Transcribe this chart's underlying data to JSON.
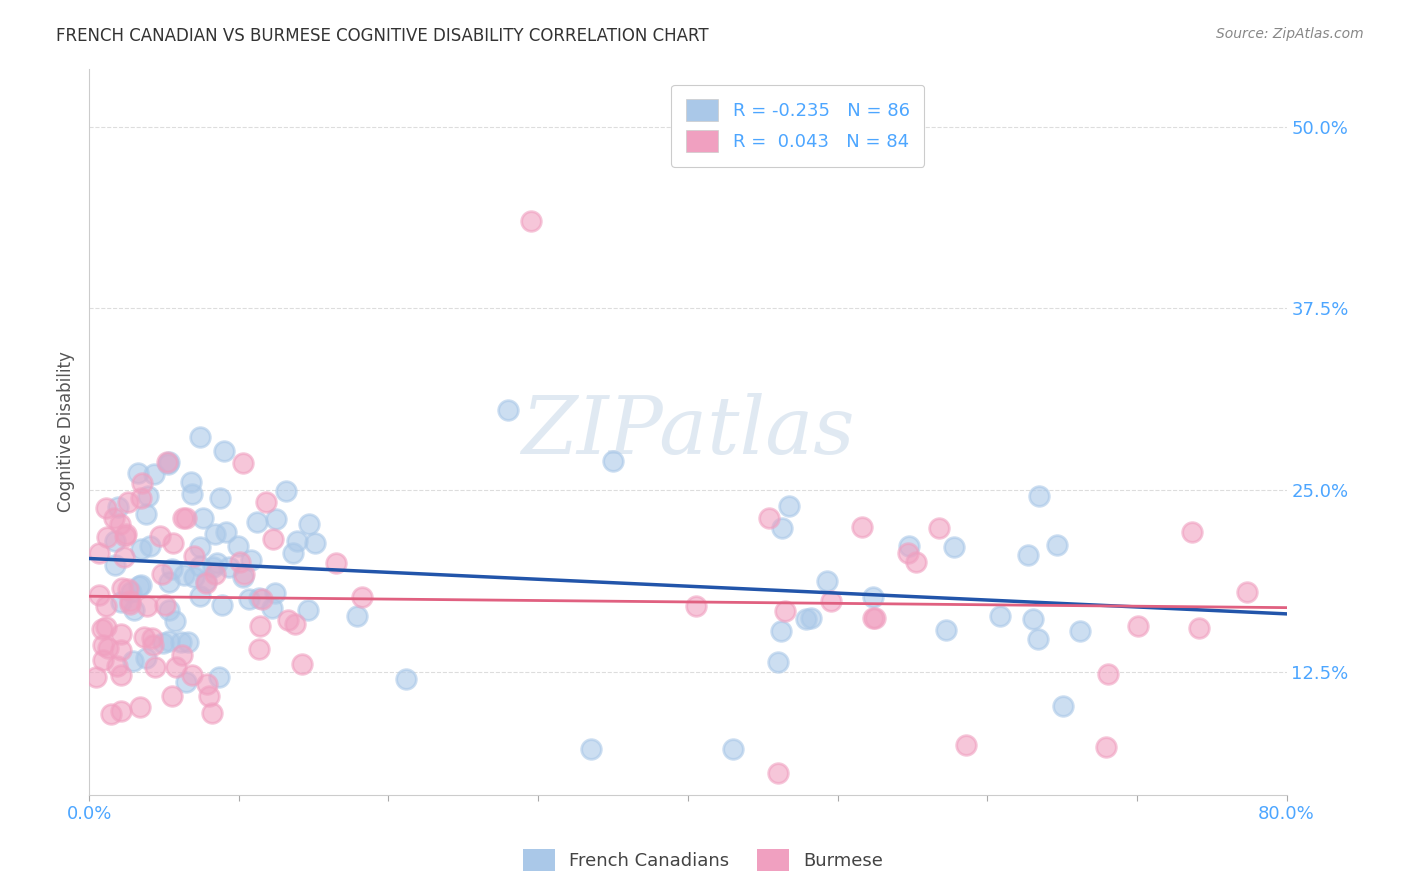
{
  "title": "FRENCH CANADIAN VS BURMESE COGNITIVE DISABILITY CORRELATION CHART",
  "source": "Source: ZipAtlas.com",
  "ylabel": "Cognitive Disability",
  "ytick_labels": [
    "12.5%",
    "25.0%",
    "37.5%",
    "50.0%"
  ],
  "ytick_values": [
    0.125,
    0.25,
    0.375,
    0.5
  ],
  "xlim": [
    0.0,
    0.8
  ],
  "ylim": [
    0.04,
    0.54
  ],
  "trend_blue_color": "#2255aa",
  "trend_pink_color": "#e06080",
  "scatter_blue_color": "#aac8e8",
  "scatter_pink_color": "#f0a0c0",
  "watermark": "ZIPatlas",
  "background_color": "#ffffff",
  "grid_color": "#dddddd",
  "axis_label_color": "#4da6ff",
  "title_color": "#333333",
  "source_color": "#888888",
  "ylabel_color": "#555555",
  "xtick_color": "#4da6ff",
  "seed_blue": 42,
  "seed_pink": 99,
  "N_blue": 86,
  "N_pink": 84,
  "legend_top_labels": [
    "R = -0.235   N = 86",
    "R =  0.043   N = 84"
  ],
  "legend_bottom_labels": [
    "French Canadians",
    "Burmese"
  ]
}
